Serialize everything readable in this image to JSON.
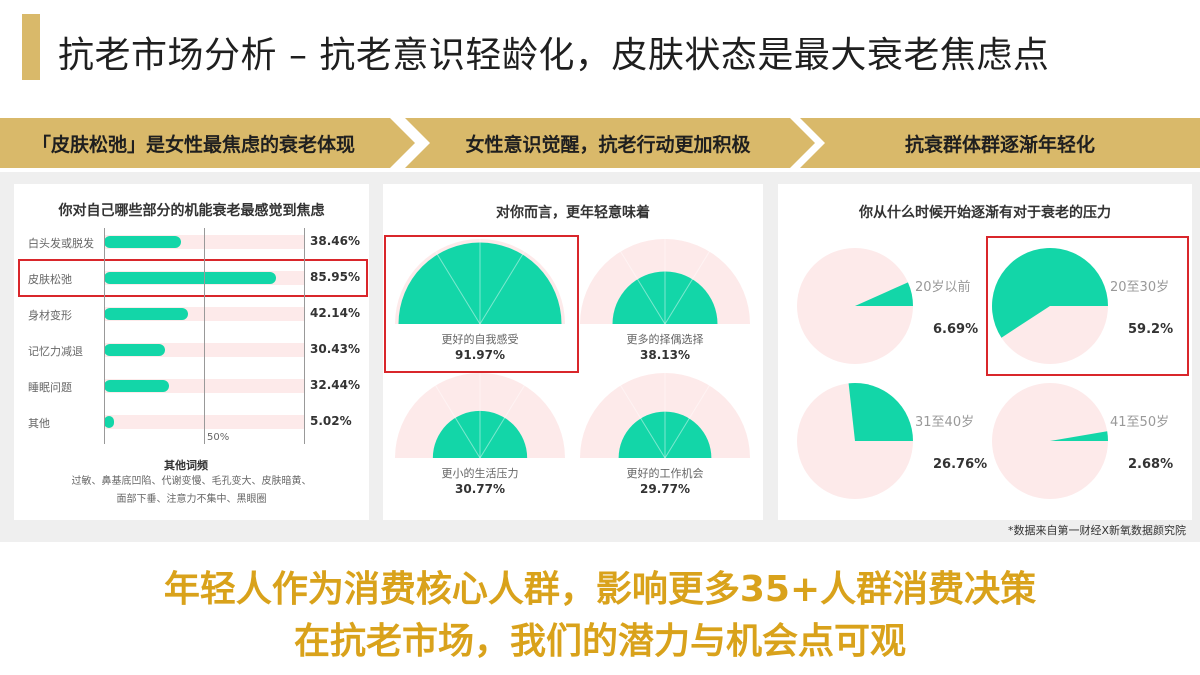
{
  "title": "抗老市场分析 – 抗老意识轻龄化，皮肤状态是最大衰老焦虑点",
  "banners": [
    "「皮肤松弛」是女性最焦虑的衰老体现",
    "女性意识觉醒，抗老行动更加积极",
    "抗衰群体群逐渐年轻化"
  ],
  "colors": {
    "accent_gold": "#d9b96a",
    "fill_green": "#13d6a8",
    "track_pink": "#fdeaea",
    "highlight_red": "#d9262b",
    "bottom_text": "#d9a21b"
  },
  "chart_data": [
    {
      "type": "bar",
      "title": "你对自己哪些部分的机能衰老最感觉到焦虑",
      "categories": [
        "白头发或脱发",
        "皮肤松弛",
        "身材变形",
        "记忆力减退",
        "睡眠问题",
        "其他"
      ],
      "values": [
        38.46,
        85.95,
        42.14,
        30.43,
        32.44,
        5.02
      ],
      "value_labels": [
        "38.46%",
        "85.95%",
        "42.14%",
        "30.43%",
        "32.44%",
        "5.02%"
      ],
      "xlim": [
        0,
        100
      ],
      "ticks": [
        "50%"
      ],
      "highlighted_category": "皮肤松弛",
      "others_title": "其他词频",
      "others_lines": [
        "过敏、鼻基底凹陷、代谢变慢、毛孔变大、皮肤暗黄、",
        "面部下垂、注意力不集中、黑眼圈"
      ]
    },
    {
      "type": "pie",
      "subtype": "semicircle",
      "title": "对你而言，更年轻意味着",
      "categories": [
        "更好的自我感受",
        "更多的择偶选择",
        "更小的生活压力",
        "更好的工作机会"
      ],
      "values": [
        91.97,
        38.13,
        30.77,
        29.77
      ],
      "value_labels": [
        "91.97%",
        "38.13%",
        "30.77%",
        "29.77%"
      ],
      "highlighted_category": "更好的自我感受"
    },
    {
      "type": "pie",
      "title": "你从什么时候开始逐渐有对于衰老的压力",
      "categories": [
        "20岁以前",
        "20至30岁",
        "31至40岁",
        "41至50岁"
      ],
      "values": [
        6.69,
        59.2,
        26.76,
        2.68
      ],
      "value_labels": [
        "6.69%",
        "59.2%",
        "26.76%",
        "2.68%"
      ],
      "highlighted_category": "20至30岁"
    }
  ],
  "source": "*数据来自第一财经X新氧数据颜究院",
  "conclusion": [
    "年轻人作为消费核心人群，影响更多35+人群消费决策",
    "在抗老市场，我们的潜力与机会点可观"
  ]
}
